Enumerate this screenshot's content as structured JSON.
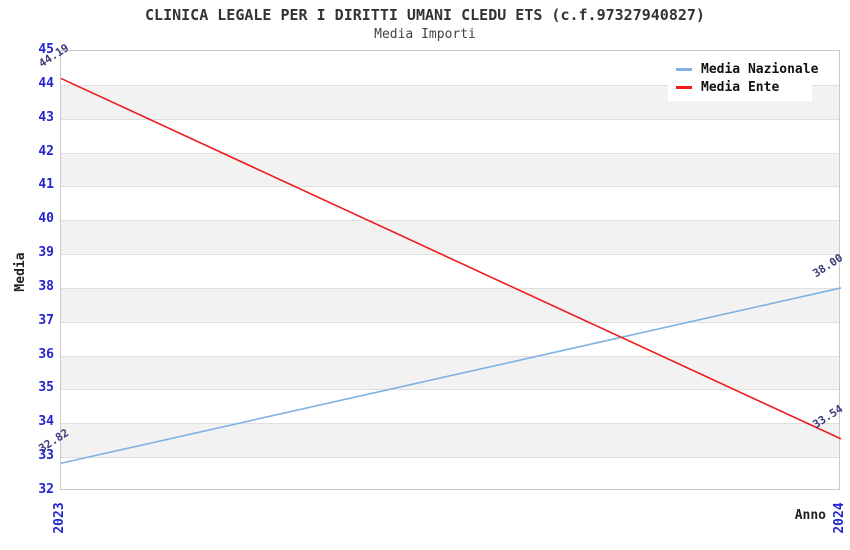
{
  "title": "CLINICA LEGALE PER I DIRITTI UMANI CLEDU ETS (c.f.97327940827)",
  "subtitle": "Media Importi",
  "colors": {
    "background": "#ffffff",
    "tick_label": "#2424cc",
    "point_label": "#3b3b7a",
    "axis_title": "#222222",
    "band_fill": "#f2f2f2",
    "band_line": "#e0e0e0",
    "plot_border": "#c9c9c9",
    "legend_background": "#ffffff"
  },
  "chart_data": {
    "type": "line",
    "title": "CLINICA LEGALE PER I DIRITTI UMANI CLEDU ETS (c.f.97327940827)",
    "subtitle": "Media Importi",
    "x": [
      "2023",
      "2024"
    ],
    "series": [
      {
        "name": "Media Nazionale",
        "color": "#7eb2e4",
        "values": [
          32.82,
          38.0
        ]
      },
      {
        "name": "Media Ente",
        "color": "#ee1c1c",
        "values": [
          44.19,
          33.54
        ]
      }
    ],
    "xlabel": "Anno",
    "ylabel": "Media",
    "ylim": [
      32,
      45
    ],
    "ytick_step": 1,
    "point_label_decimals": 2,
    "grid": "horizontal-bands",
    "legend_position": "top-right"
  }
}
